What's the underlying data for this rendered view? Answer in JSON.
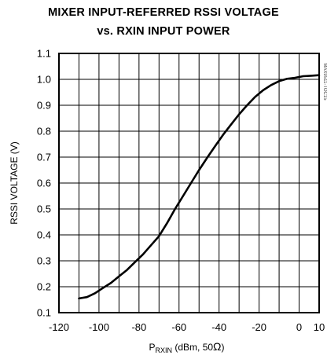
{
  "chart_data": {
    "type": "line",
    "title": "MIXER INPUT-REFERRED RSSI VOLTAGE",
    "subtitle": "vs. RXIN INPUT POWER",
    "xlabel": {
      "prefix": "P",
      "subscript": "RXIN",
      "suffix": " (dBm, 50",
      "unit_symbol": "Ω",
      "close": ")"
    },
    "ylabel": "RSSI VOLTAGE (V)",
    "xlim": [
      -120,
      10
    ],
    "ylim": [
      0.1,
      1.1
    ],
    "x_ticks": [
      -120,
      -100,
      -80,
      -60,
      -40,
      -20,
      0,
      10
    ],
    "y_ticks": [
      0.1,
      0.2,
      0.3,
      0.4,
      0.5,
      0.6,
      0.7,
      0.8,
      0.9,
      1.0,
      1.1
    ],
    "x_tick_labels": [
      "-120",
      "-100",
      "-80",
      "-60",
      "-40",
      "-20",
      "0",
      "10"
    ],
    "y_tick_labels": [
      "0.1",
      "0.2",
      "0.3",
      "0.4",
      "0.5",
      "0.6",
      "0.7",
      "0.8",
      "0.9",
      "1.0",
      "1.1"
    ],
    "grid": true,
    "series": [
      {
        "x": [
          -110,
          -106,
          -102,
          -98,
          -94,
          -90,
          -86,
          -82,
          -78,
          -74,
          -70,
          -66,
          -62,
          -58,
          -54,
          -50,
          -46,
          -42,
          -38,
          -34,
          -30,
          -26,
          -22,
          -18,
          -14,
          -10,
          -6,
          -2,
          2,
          6,
          10
        ],
        "y": [
          0.155,
          0.16,
          0.175,
          0.195,
          0.215,
          0.24,
          0.265,
          0.295,
          0.325,
          0.36,
          0.395,
          0.445,
          0.5,
          0.55,
          0.6,
          0.65,
          0.697,
          0.742,
          0.786,
          0.826,
          0.865,
          0.9,
          0.932,
          0.958,
          0.978,
          0.993,
          1.002,
          1.006,
          1.012,
          1.014,
          1.016
        ]
      }
    ],
    "side_marker": "MAX9511-TOC15",
    "line_color": "#000000"
  }
}
